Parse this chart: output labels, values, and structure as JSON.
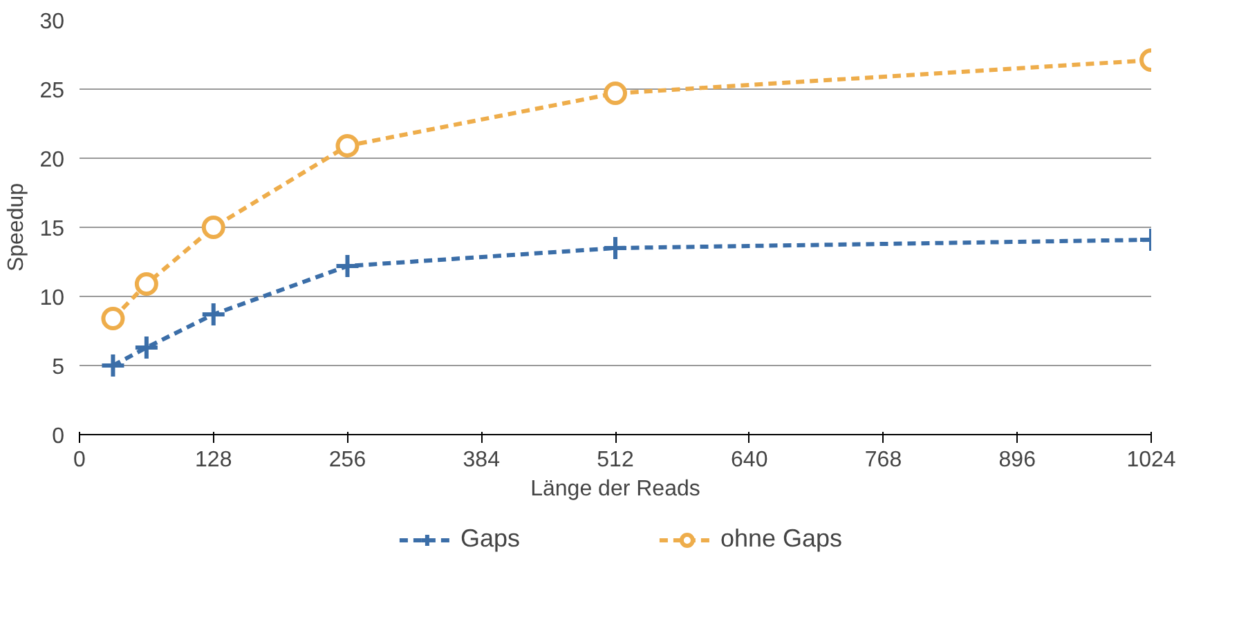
{
  "chart_data": {
    "type": "line",
    "xlabel": "Länge der Reads",
    "ylabel": "Speedup",
    "x": [
      32,
      64,
      128,
      256,
      512,
      1024
    ],
    "series": [
      {
        "name": "Gaps",
        "color": "#3b6ea8",
        "marker": "cross",
        "values": [
          5.0,
          6.3,
          8.7,
          12.2,
          13.5,
          14.1
        ]
      },
      {
        "name": "ohne Gaps",
        "color": "#eead4b",
        "marker": "circle",
        "values": [
          8.4,
          10.9,
          15.0,
          20.9,
          24.7,
          27.1
        ]
      }
    ],
    "xlim": [
      0,
      1024
    ],
    "xticks": [
      0,
      128,
      256,
      384,
      512,
      640,
      768,
      896,
      1024
    ],
    "ylim": [
      0,
      30
    ],
    "yticks": [
      0,
      5,
      10,
      15,
      20,
      25,
      30
    ],
    "grid": "y",
    "legend": "bottom",
    "line_style": "dashed"
  }
}
